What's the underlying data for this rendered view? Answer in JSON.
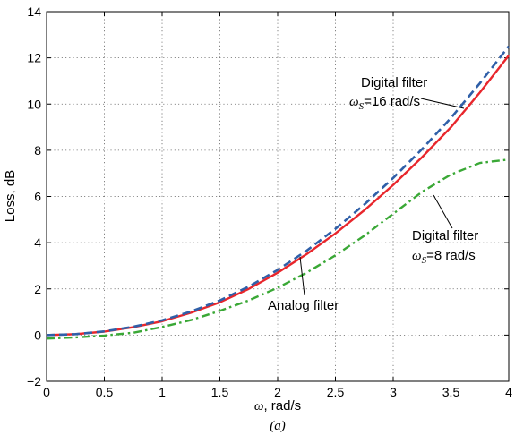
{
  "chart_data": {
    "type": "line",
    "title": "",
    "caption": "(a)",
    "xlabel_symbol": "ω",
    "xlabel_rest": ", rad/s",
    "ylabel": "Loss, dB",
    "xlim": [
      0,
      4
    ],
    "ylim": [
      -2,
      14
    ],
    "xticks": [
      "0",
      "0.5",
      "1",
      "1.5",
      "2",
      "2.5",
      "3",
      "3.5",
      "4"
    ],
    "yticks": [
      "−2",
      "0",
      "2",
      "4",
      "6",
      "8",
      "10",
      "12",
      "14"
    ],
    "grid": true,
    "colors": {
      "analog": "#e8262c",
      "digital16": "#2f5fa8",
      "digital8": "#3aa836"
    },
    "series": [
      {
        "key": "analog",
        "x": [
          0,
          0.25,
          0.5,
          0.75,
          1.0,
          1.25,
          1.5,
          1.75,
          2.0,
          2.25,
          2.5,
          2.75,
          3.0,
          3.25,
          3.5,
          3.75,
          4.0
        ],
        "values": [
          0.0,
          0.04,
          0.15,
          0.34,
          0.6,
          0.97,
          1.42,
          2.0,
          2.7,
          3.5,
          4.4,
          5.4,
          6.5,
          7.7,
          9.0,
          10.5,
          12.1
        ]
      },
      {
        "key": "digital16",
        "x": [
          0,
          0.25,
          0.5,
          0.75,
          1.0,
          1.25,
          1.5,
          1.75,
          2.0,
          2.25,
          2.5,
          2.75,
          3.0,
          3.25,
          3.5,
          3.75,
          4.0
        ],
        "values": [
          0.0,
          0.04,
          0.16,
          0.36,
          0.64,
          1.02,
          1.5,
          2.1,
          2.82,
          3.65,
          4.6,
          5.65,
          6.8,
          8.05,
          9.4,
          10.9,
          12.5
        ]
      },
      {
        "key": "digital8",
        "x": [
          0,
          0.25,
          0.5,
          0.75,
          1.0,
          1.25,
          1.5,
          1.75,
          2.0,
          2.25,
          2.5,
          2.75,
          3.0,
          3.25,
          3.5,
          3.75,
          4.0
        ],
        "values": [
          -0.15,
          -0.1,
          -0.02,
          0.1,
          0.35,
          0.65,
          1.05,
          1.5,
          2.05,
          2.7,
          3.45,
          4.3,
          5.25,
          6.2,
          6.95,
          7.45,
          7.6
        ]
      }
    ],
    "annotations": {
      "digital16_line1": "Digital filter",
      "digital16_sym": "ω",
      "digital16_sub": "S",
      "digital16_rest": "=16 rad/s",
      "digital8_line1": "Digital filter",
      "digital8_sym": "ω",
      "digital8_sub": "S",
      "digital8_rest": "=8 rad/s",
      "analog": "Analog filter"
    }
  }
}
